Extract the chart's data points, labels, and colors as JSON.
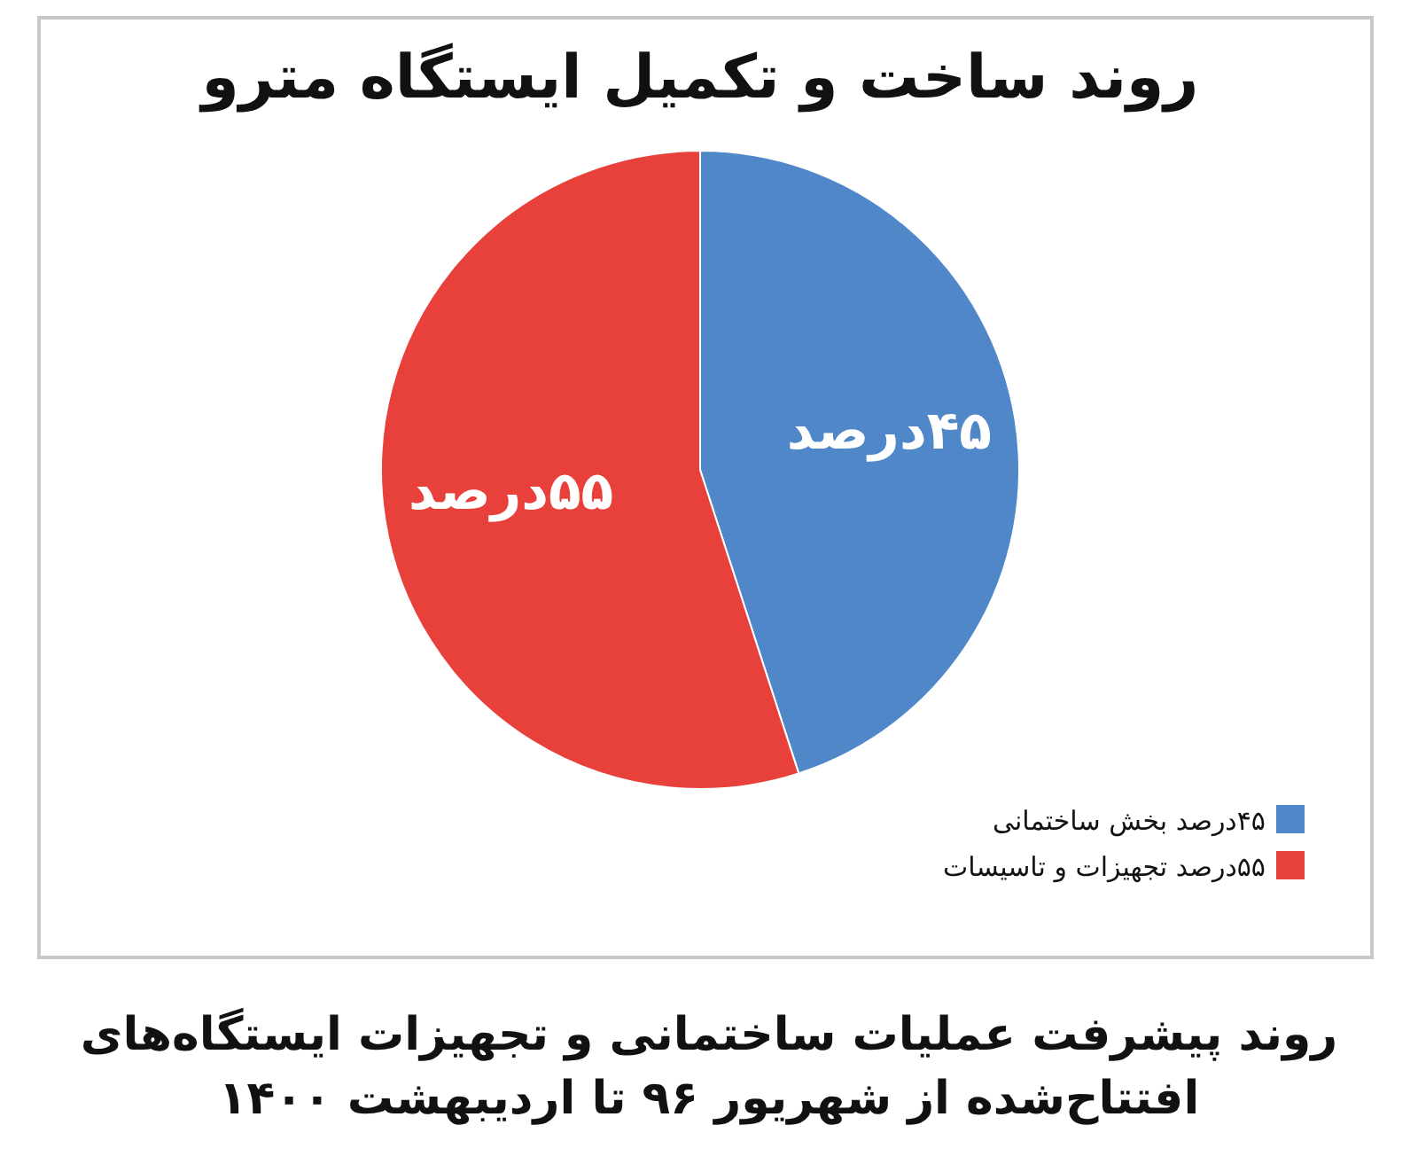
{
  "chart_data": {
    "type": "pie",
    "title": "روند ساخت و تکمیل ایستگاه مترو",
    "categories": [
      "۴۵درصد بخش ساختمانی",
      "۵۵درصد تجهیزات و تاسیسات"
    ],
    "values": [
      45,
      55
    ],
    "colors": [
      "#4f87c9",
      "#e8403a"
    ],
    "value_labels": [
      "۴۵درصد",
      "۵۵درصد"
    ],
    "legend": "bottom right",
    "annotations": [
      "روند پیشرفت عملیات ساختمانی و تجهیزات ایستگاه‌های افتتاح‌شده از شهریور ۹۶ تا اردیبهشت ۱۴۰۰"
    ]
  }
}
